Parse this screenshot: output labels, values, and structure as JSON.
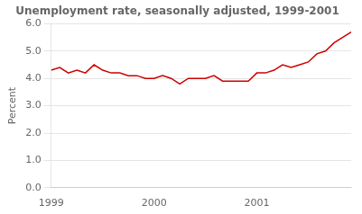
{
  "chart_data": {
    "type": "line",
    "title": "Unemployment rate, seasonally adjusted, 1999-2001",
    "ylabel": "Percent",
    "categories": [
      "1999",
      null,
      null,
      null,
      null,
      null,
      null,
      null,
      null,
      null,
      null,
      null,
      "2000",
      null,
      null,
      null,
      null,
      null,
      null,
      null,
      null,
      null,
      null,
      null,
      "2001",
      null,
      null,
      null,
      null,
      null,
      null,
      null,
      null,
      null,
      null,
      null
    ],
    "values": [
      4.3,
      4.4,
      4.2,
      4.3,
      4.2,
      4.5,
      4.3,
      4.2,
      4.2,
      4.1,
      4.1,
      4.0,
      4.0,
      4.1,
      4.0,
      3.8,
      4.0,
      4.0,
      4.0,
      4.1,
      3.9,
      3.9,
      3.9,
      3.9,
      4.2,
      4.2,
      4.3,
      4.5,
      4.4,
      4.5,
      4.6,
      4.9,
      5.0,
      5.3,
      5.5,
      5.7
    ],
    "color": "#cc0000",
    "ylim": [
      0.0,
      6.0
    ],
    "yticks": [
      {
        "value": 0,
        "label": "0.0"
      },
      {
        "value": 1,
        "label": "1.0"
      },
      {
        "value": 2,
        "label": "2.0"
      },
      {
        "value": 3,
        "label": "3.0"
      },
      {
        "value": 4,
        "label": "4.0"
      },
      {
        "value": 5,
        "label": "5.0"
      },
      {
        "value": 6,
        "label": "6.0"
      }
    ],
    "grid": "y"
  }
}
